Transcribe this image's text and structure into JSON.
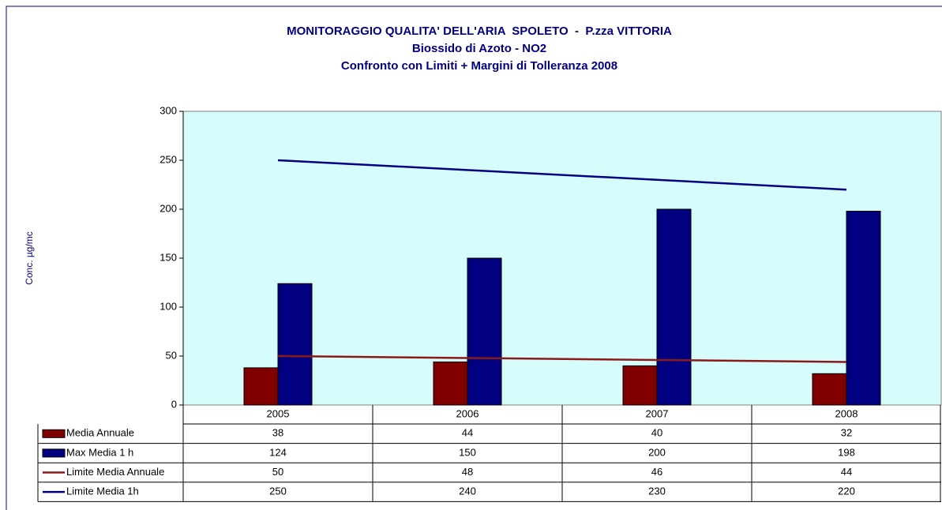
{
  "chart_data": {
    "type": "bar",
    "title": "MONITORAGGIO QUALITA' DELL'ARIA  SPOLETO  -  P.zza VITTORIA",
    "subtitle": [
      "Biossido di Azoto - NO2",
      "Confronto con Limiti + Margini di Tolleranza 2008"
    ],
    "ylabel": "Conc. µg/mc",
    "categories": [
      "2005",
      "2006",
      "2007",
      "2008"
    ],
    "series": [
      {
        "name": "Media Annuale",
        "type": "bar",
        "color": "#800000",
        "values": [
          38,
          44,
          40,
          32
        ]
      },
      {
        "name": "Max Media 1 h",
        "type": "bar",
        "color": "#000080",
        "values": [
          124,
          150,
          200,
          198
        ]
      },
      {
        "name": "Limite Media Annuale",
        "type": "line",
        "color": "#8b1a1a",
        "values": [
          50,
          48,
          46,
          44
        ]
      },
      {
        "name": "Limite Media 1h",
        "type": "line",
        "color": "#000080",
        "values": [
          250,
          240,
          230,
          220
        ]
      }
    ],
    "ylim": [
      0,
      300
    ],
    "yticks": [
      0,
      50,
      100,
      150,
      200,
      250,
      300
    ]
  }
}
